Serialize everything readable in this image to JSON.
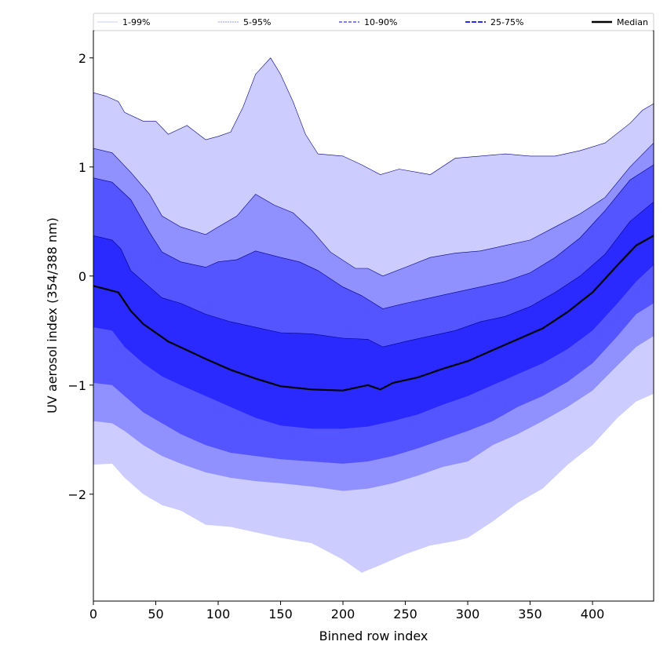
{
  "chart_data": {
    "type": "area",
    "xlabel": "Binned row index",
    "ylabel": "UV aerosol index (354/388 nm)",
    "xlim": [
      0,
      449
    ],
    "ylim": [
      -2.98,
      2.25
    ],
    "xticks": [
      0,
      50,
      100,
      150,
      200,
      250,
      300,
      350,
      400
    ],
    "xtick_labels": [
      "0",
      "50",
      "100",
      "150",
      "200",
      "250",
      "300",
      "350",
      "400"
    ],
    "yticks": [
      -2,
      -1,
      0,
      1,
      2
    ],
    "ytick_labels": [
      "−2",
      "−1",
      "0",
      "1",
      "2"
    ],
    "grid": false,
    "legend_placement": "top, above plot",
    "bands": [
      {
        "name": "1-99%",
        "color": "#ccccff",
        "upper": [
          [
            0,
            1.68
          ],
          [
            10,
            1.65
          ],
          [
            20,
            1.6
          ],
          [
            25,
            1.5
          ],
          [
            40,
            1.42
          ],
          [
            50,
            1.42
          ],
          [
            60,
            1.3
          ],
          [
            75,
            1.38
          ],
          [
            90,
            1.25
          ],
          [
            100,
            1.28
          ],
          [
            110,
            1.32
          ],
          [
            120,
            1.55
          ],
          [
            130,
            1.85
          ],
          [
            142,
            2.0
          ],
          [
            150,
            1.85
          ],
          [
            160,
            1.6
          ],
          [
            170,
            1.3
          ],
          [
            180,
            1.12
          ],
          [
            200,
            1.1
          ],
          [
            215,
            1.02
          ],
          [
            230,
            0.93
          ],
          [
            245,
            0.98
          ],
          [
            260,
            0.95
          ],
          [
            270,
            0.93
          ],
          [
            290,
            1.08
          ],
          [
            310,
            1.1
          ],
          [
            330,
            1.12
          ],
          [
            350,
            1.1
          ],
          [
            370,
            1.1
          ],
          [
            390,
            1.15
          ],
          [
            410,
            1.22
          ],
          [
            430,
            1.4
          ],
          [
            440,
            1.52
          ],
          [
            449,
            1.58
          ]
        ],
        "lower": [
          [
            0,
            -1.73
          ],
          [
            15,
            -1.72
          ],
          [
            25,
            -1.85
          ],
          [
            40,
            -2.0
          ],
          [
            55,
            -2.1
          ],
          [
            70,
            -2.15
          ],
          [
            90,
            -2.28
          ],
          [
            110,
            -2.3
          ],
          [
            130,
            -2.35
          ],
          [
            150,
            -2.4
          ],
          [
            175,
            -2.45
          ],
          [
            200,
            -2.6
          ],
          [
            215,
            -2.72
          ],
          [
            230,
            -2.65
          ],
          [
            250,
            -2.55
          ],
          [
            270,
            -2.47
          ],
          [
            290,
            -2.43
          ],
          [
            300,
            -2.4
          ],
          [
            320,
            -2.25
          ],
          [
            340,
            -2.08
          ],
          [
            360,
            -1.95
          ],
          [
            380,
            -1.73
          ],
          [
            400,
            -1.55
          ],
          [
            420,
            -1.3
          ],
          [
            435,
            -1.15
          ],
          [
            449,
            -1.08
          ]
        ]
      },
      {
        "name": "5-95%",
        "color": "#9090ff",
        "upper": [
          [
            0,
            1.17
          ],
          [
            15,
            1.13
          ],
          [
            30,
            0.95
          ],
          [
            45,
            0.75
          ],
          [
            55,
            0.55
          ],
          [
            70,
            0.45
          ],
          [
            90,
            0.38
          ],
          [
            100,
            0.45
          ],
          [
            115,
            0.55
          ],
          [
            130,
            0.75
          ],
          [
            145,
            0.65
          ],
          [
            160,
            0.58
          ],
          [
            175,
            0.42
          ],
          [
            190,
            0.22
          ],
          [
            210,
            0.07
          ],
          [
            220,
            0.07
          ],
          [
            232,
            0.0
          ],
          [
            250,
            0.08
          ],
          [
            270,
            0.17
          ],
          [
            290,
            0.21
          ],
          [
            310,
            0.23
          ],
          [
            330,
            0.28
          ],
          [
            350,
            0.33
          ],
          [
            370,
            0.45
          ],
          [
            390,
            0.57
          ],
          [
            410,
            0.72
          ],
          [
            430,
            1.0
          ],
          [
            449,
            1.22
          ]
        ],
        "lower": [
          [
            0,
            -1.33
          ],
          [
            15,
            -1.35
          ],
          [
            25,
            -1.42
          ],
          [
            40,
            -1.55
          ],
          [
            55,
            -1.65
          ],
          [
            70,
            -1.72
          ],
          [
            90,
            -1.8
          ],
          [
            110,
            -1.85
          ],
          [
            130,
            -1.88
          ],
          [
            150,
            -1.9
          ],
          [
            175,
            -1.93
          ],
          [
            200,
            -1.97
          ],
          [
            220,
            -1.95
          ],
          [
            240,
            -1.9
          ],
          [
            260,
            -1.83
          ],
          [
            280,
            -1.75
          ],
          [
            300,
            -1.7
          ],
          [
            320,
            -1.55
          ],
          [
            340,
            -1.45
          ],
          [
            360,
            -1.33
          ],
          [
            380,
            -1.2
          ],
          [
            400,
            -1.05
          ],
          [
            420,
            -0.82
          ],
          [
            435,
            -0.65
          ],
          [
            449,
            -0.55
          ]
        ]
      },
      {
        "name": "10-90%",
        "color": "#5555ff",
        "upper": [
          [
            0,
            0.9
          ],
          [
            15,
            0.86
          ],
          [
            30,
            0.7
          ],
          [
            45,
            0.4
          ],
          [
            55,
            0.22
          ],
          [
            70,
            0.13
          ],
          [
            90,
            0.08
          ],
          [
            100,
            0.13
          ],
          [
            115,
            0.15
          ],
          [
            130,
            0.23
          ],
          [
            150,
            0.17
          ],
          [
            165,
            0.13
          ],
          [
            180,
            0.05
          ],
          [
            200,
            -0.1
          ],
          [
            215,
            -0.18
          ],
          [
            232,
            -0.3
          ],
          [
            250,
            -0.25
          ],
          [
            270,
            -0.2
          ],
          [
            290,
            -0.15
          ],
          [
            310,
            -0.1
          ],
          [
            330,
            -0.05
          ],
          [
            350,
            0.03
          ],
          [
            370,
            0.17
          ],
          [
            390,
            0.35
          ],
          [
            410,
            0.6
          ],
          [
            430,
            0.88
          ],
          [
            449,
            1.02
          ]
        ],
        "lower": [
          [
            0,
            -0.98
          ],
          [
            15,
            -1.0
          ],
          [
            25,
            -1.1
          ],
          [
            40,
            -1.25
          ],
          [
            55,
            -1.35
          ],
          [
            70,
            -1.45
          ],
          [
            90,
            -1.55
          ],
          [
            110,
            -1.62
          ],
          [
            130,
            -1.65
          ],
          [
            150,
            -1.68
          ],
          [
            175,
            -1.7
          ],
          [
            200,
            -1.72
          ],
          [
            220,
            -1.7
          ],
          [
            240,
            -1.65
          ],
          [
            260,
            -1.58
          ],
          [
            280,
            -1.5
          ],
          [
            300,
            -1.42
          ],
          [
            320,
            -1.33
          ],
          [
            340,
            -1.2
          ],
          [
            360,
            -1.1
          ],
          [
            380,
            -0.97
          ],
          [
            400,
            -0.8
          ],
          [
            420,
            -0.55
          ],
          [
            435,
            -0.35
          ],
          [
            449,
            -0.25
          ]
        ]
      },
      {
        "name": "25-75%",
        "color": "#2a2aff",
        "upper": [
          [
            0,
            0.37
          ],
          [
            15,
            0.33
          ],
          [
            22,
            0.25
          ],
          [
            30,
            0.05
          ],
          [
            45,
            -0.1
          ],
          [
            55,
            -0.2
          ],
          [
            70,
            -0.25
          ],
          [
            90,
            -0.35
          ],
          [
            110,
            -0.42
          ],
          [
            130,
            -0.47
          ],
          [
            150,
            -0.52
          ],
          [
            175,
            -0.53
          ],
          [
            200,
            -0.57
          ],
          [
            220,
            -0.58
          ],
          [
            232,
            -0.65
          ],
          [
            250,
            -0.6
          ],
          [
            270,
            -0.55
          ],
          [
            290,
            -0.5
          ],
          [
            310,
            -0.42
          ],
          [
            330,
            -0.37
          ],
          [
            350,
            -0.28
          ],
          [
            370,
            -0.15
          ],
          [
            390,
            0.0
          ],
          [
            410,
            0.2
          ],
          [
            430,
            0.5
          ],
          [
            449,
            0.68
          ]
        ],
        "lower": [
          [
            0,
            -0.47
          ],
          [
            15,
            -0.5
          ],
          [
            25,
            -0.65
          ],
          [
            40,
            -0.8
          ],
          [
            55,
            -0.92
          ],
          [
            70,
            -1.0
          ],
          [
            90,
            -1.1
          ],
          [
            110,
            -1.2
          ],
          [
            130,
            -1.3
          ],
          [
            150,
            -1.37
          ],
          [
            175,
            -1.4
          ],
          [
            200,
            -1.4
          ],
          [
            220,
            -1.38
          ],
          [
            240,
            -1.33
          ],
          [
            260,
            -1.27
          ],
          [
            280,
            -1.18
          ],
          [
            300,
            -1.1
          ],
          [
            320,
            -1.0
          ],
          [
            340,
            -0.9
          ],
          [
            360,
            -0.8
          ],
          [
            380,
            -0.67
          ],
          [
            400,
            -0.5
          ],
          [
            420,
            -0.25
          ],
          [
            435,
            -0.05
          ],
          [
            449,
            0.1
          ]
        ]
      }
    ],
    "median": {
      "name": "Median",
      "color": "#000000",
      "points": [
        [
          0,
          -0.09
        ],
        [
          20,
          -0.15
        ],
        [
          30,
          -0.32
        ],
        [
          40,
          -0.44
        ],
        [
          50,
          -0.52
        ],
        [
          60,
          -0.6
        ],
        [
          75,
          -0.68
        ],
        [
          90,
          -0.76
        ],
        [
          110,
          -0.86
        ],
        [
          130,
          -0.94
        ],
        [
          150,
          -1.01
        ],
        [
          175,
          -1.04
        ],
        [
          200,
          -1.05
        ],
        [
          220,
          -1.0
        ],
        [
          230,
          -1.04
        ],
        [
          240,
          -0.98
        ],
        [
          260,
          -0.93
        ],
        [
          280,
          -0.85
        ],
        [
          300,
          -0.78
        ],
        [
          320,
          -0.68
        ],
        [
          340,
          -0.58
        ],
        [
          360,
          -0.48
        ],
        [
          380,
          -0.33
        ],
        [
          400,
          -0.15
        ],
        [
          420,
          0.1
        ],
        [
          435,
          0.28
        ],
        [
          449,
          0.37
        ]
      ]
    }
  }
}
